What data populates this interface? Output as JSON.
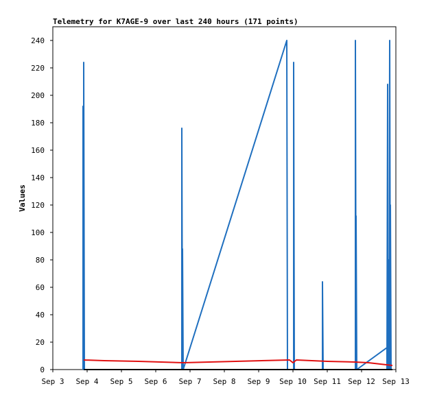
{
  "chart_data": {
    "type": "line",
    "title": "Telemetry for K7AGE-9 over last 240 hours (171 points)",
    "xlabel": "",
    "ylabel": "Values",
    "xlim": [
      0,
      10
    ],
    "ylim": [
      0,
      250
    ],
    "x_ticks": [
      {
        "label": "Sep 3",
        "x": 0
      },
      {
        "label": "Sep 4",
        "x": 1
      },
      {
        "label": "Sep 5",
        "x": 2
      },
      {
        "label": "Sep 6",
        "x": 3
      },
      {
        "label": "Sep 7",
        "x": 4
      },
      {
        "label": "Sep 8",
        "x": 5
      },
      {
        "label": "Sep 9",
        "x": 6
      },
      {
        "label": "Sep 10",
        "x": 7
      },
      {
        "label": "Sep 11",
        "x": 8
      },
      {
        "label": "Sep 12",
        "x": 9
      },
      {
        "label": "Sep 13",
        "x": 10
      }
    ],
    "y_ticks": [
      0,
      20,
      40,
      60,
      80,
      100,
      120,
      140,
      160,
      180,
      200,
      220,
      240
    ],
    "grid": false,
    "series": [
      {
        "color": "#1f6fbf",
        "points": [
          [
            0.88,
            0
          ],
          [
            0.88,
            192
          ],
          [
            0.9,
            0
          ],
          [
            0.9,
            224
          ],
          [
            0.92,
            0
          ],
          [
            3.76,
            0
          ],
          [
            3.76,
            176
          ],
          [
            3.78,
            0
          ],
          [
            3.78,
            88
          ],
          [
            3.8,
            0
          ],
          [
            6.82,
            240
          ],
          [
            6.84,
            0
          ],
          [
            7.02,
            0
          ],
          [
            7.02,
            224
          ],
          [
            7.04,
            0
          ],
          [
            7.86,
            0
          ],
          [
            7.86,
            64
          ],
          [
            7.88,
            0
          ],
          [
            8.82,
            0
          ],
          [
            8.82,
            240
          ],
          [
            8.84,
            0
          ],
          [
            8.84,
            112
          ],
          [
            8.86,
            0
          ],
          [
            9.74,
            16
          ],
          [
            9.74,
            0
          ],
          [
            9.76,
            208
          ],
          [
            9.76,
            0
          ],
          [
            9.78,
            80
          ],
          [
            9.8,
            0
          ],
          [
            9.82,
            240
          ],
          [
            9.84,
            0
          ],
          [
            9.84,
            120
          ],
          [
            9.86,
            0
          ]
        ]
      },
      {
        "color": "#e01010",
        "points": [
          [
            0.9,
            7
          ],
          [
            1.5,
            6.5
          ],
          [
            2.5,
            6
          ],
          [
            3.8,
            5
          ],
          [
            6.9,
            7
          ],
          [
            7.0,
            5
          ],
          [
            7.1,
            7
          ],
          [
            8.0,
            6
          ],
          [
            8.8,
            5.5
          ],
          [
            9.2,
            5
          ],
          [
            9.9,
            3
          ]
        ]
      },
      {
        "color": "#000000",
        "points": [
          [
            0.9,
            0
          ],
          [
            9.9,
            0
          ]
        ]
      }
    ]
  }
}
